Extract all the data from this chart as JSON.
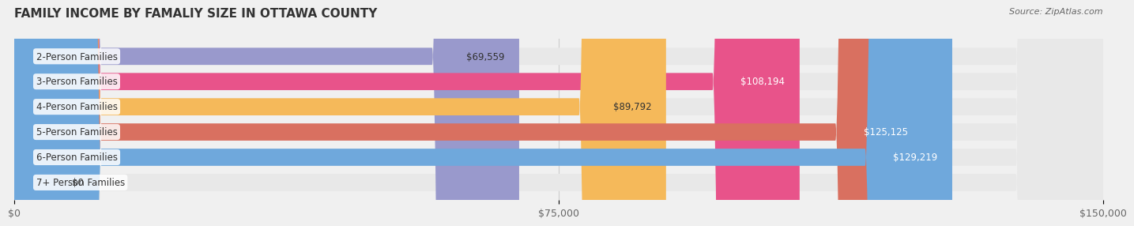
{
  "title": "FAMILY INCOME BY FAMALIY SIZE IN OTTAWA COUNTY",
  "source": "Source: ZipAtlas.com",
  "categories": [
    "2-Person Families",
    "3-Person Families",
    "4-Person Families",
    "5-Person Families",
    "6-Person Families",
    "7+ Person Families"
  ],
  "values": [
    69559,
    108194,
    89792,
    125125,
    129219,
    0
  ],
  "labels": [
    "$69,559",
    "$108,194",
    "$89,792",
    "$125,125",
    "$129,219",
    "$0"
  ],
  "bar_colors": [
    "#9999cc",
    "#e8538a",
    "#f5b95a",
    "#d97060",
    "#6fa8dc",
    "#c8b0d0"
  ],
  "label_colors": [
    "#333333",
    "#ffffff",
    "#333333",
    "#ffffff",
    "#ffffff",
    "#333333"
  ],
  "xlim": [
    0,
    150000
  ],
  "xticks": [
    0,
    75000,
    150000
  ],
  "xticklabels": [
    "$0",
    "$75,000",
    "$150,000"
  ],
  "bar_height": 0.68,
  "background_color": "#f0f0f0",
  "bar_bg_color": "#e8e8e8",
  "title_fontsize": 11,
  "label_fontsize": 8.5,
  "tick_fontsize": 9,
  "source_fontsize": 8
}
